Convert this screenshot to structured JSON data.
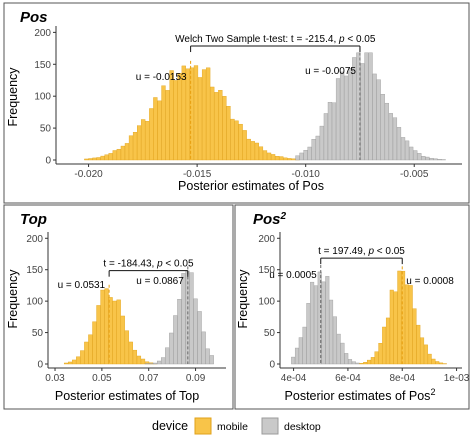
{
  "colors": {
    "mobile_fill": "#F8C449",
    "mobile_stroke": "#E0A21A",
    "desktop_fill": "#C9C9C9",
    "desktop_stroke": "#9B9B9B",
    "axis": "#333333",
    "panel_border": "#555555"
  },
  "legend": {
    "title": "device",
    "items": [
      {
        "label": "mobile",
        "color": "#F8C449"
      },
      {
        "label": "desktop",
        "color": "#C9C9C9"
      }
    ]
  },
  "chart_data": [
    {
      "id": "pos",
      "type": "bar",
      "title": "Pos",
      "title_superscript": "",
      "xlabel": "Posterior estimates of Pos",
      "xlabel_superscript": "",
      "ylabel": "Frequency",
      "xlim": [
        -0.0215,
        -0.0028
      ],
      "ylim": [
        0,
        210
      ],
      "xticks": [
        -0.02,
        -0.015,
        -0.01,
        -0.005
      ],
      "xtick_labels": [
        "-0.020",
        "-0.015",
        "-0.010",
        "-0.005"
      ],
      "yticks": [
        0,
        50,
        100,
        150,
        200
      ],
      "ytick_labels": [
        "0",
        "50",
        "100",
        "150",
        "200"
      ],
      "test": {
        "prefix": "Welch Two Sample t-test:  t = -215.4,  ",
        "p": "p",
        "suffix": " < 0.05",
        "y": 188
      },
      "series": [
        {
          "name": "mobile",
          "mean": -0.0153,
          "mean_label": "u = -0.0153",
          "range": [
            -0.0202,
            -0.0102
          ],
          "peak": 148,
          "sd": 0.0016
        },
        {
          "name": "desktop",
          "mean": -0.0075,
          "mean_label": "u = -0.0075",
          "range": [
            -0.0105,
            -0.0035
          ],
          "peak": 168,
          "sd": 0.00115
        }
      ]
    },
    {
      "id": "top",
      "type": "bar",
      "title": "Top",
      "title_superscript": "",
      "xlabel": "Posterior estimates of Top",
      "xlabel_superscript": "",
      "ylabel": "Frequency",
      "xlim": [
        0.027,
        0.103
      ],
      "ylim": [
        0,
        210
      ],
      "xticks": [
        0.03,
        0.05,
        0.07,
        0.09
      ],
      "xtick_labels": [
        "0.03",
        "0.05",
        "0.07",
        "0.09"
      ],
      "yticks": [
        0,
        50,
        100,
        150,
        200
      ],
      "ytick_labels": [
        "0",
        "50",
        "100",
        "150",
        "200"
      ],
      "test": {
        "prefix": "t = -184.43,  ",
        "p": "p",
        "suffix": " < 0.05",
        "y": 158
      },
      "series": [
        {
          "name": "mobile",
          "mean": 0.0531,
          "mean_label": "u = 0.0531",
          "range": [
            0.034,
            0.074
          ],
          "peak": 120,
          "sd": 0.0062
        },
        {
          "name": "desktop",
          "mean": 0.0867,
          "mean_label": "u = 0.0867",
          "range": [
            0.069,
            0.098
          ],
          "peak": 148,
          "sd": 0.0046
        }
      ]
    },
    {
      "id": "pos2",
      "type": "bar",
      "title": "Pos",
      "title_superscript": "2",
      "xlabel": "Posterior estimates of Pos",
      "xlabel_superscript": "2",
      "ylabel": "Frequency",
      "xlim": [
        0.00035,
        0.00102
      ],
      "ylim": [
        0,
        210
      ],
      "xticks": [
        0.0004,
        0.0006,
        0.0008,
        0.001
      ],
      "xtick_labels": [
        "4e-04",
        "6e-04",
        "8e-04",
        "1e-03"
      ],
      "yticks": [
        0,
        50,
        100,
        150,
        200
      ],
      "ytick_labels": [
        "0",
        "50",
        "100",
        "150",
        "200"
      ],
      "test": {
        "prefix": "t = 197.49,  ",
        "p": "p",
        "suffix": " < 0.05",
        "y": 178
      },
      "series": [
        {
          "name": "desktop",
          "mean": 0.0005,
          "mean_label": "u = 0.0005",
          "range": [
            0.00039,
            0.00064
          ],
          "peak": 150,
          "sd": 4.5e-05
        },
        {
          "name": "mobile",
          "mean": 0.0008,
          "mean_label": "u = 0.0008",
          "range": [
            0.00065,
            0.00096
          ],
          "peak": 148,
          "sd": 4.8e-05
        }
      ]
    }
  ]
}
